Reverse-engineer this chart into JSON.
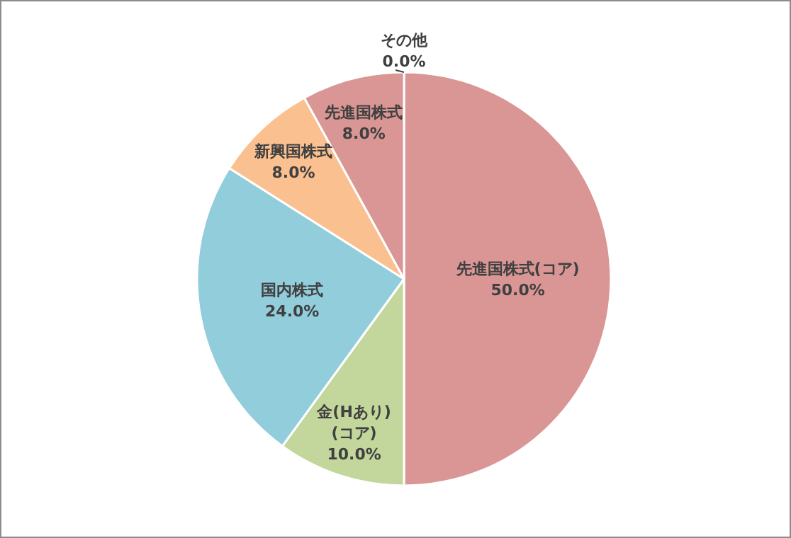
{
  "chart_data": {
    "type": "pie",
    "categories": [
      "先進国株式(コア)",
      "金(Hあり)(コア)",
      "国内株式",
      "新興国株式",
      "先進国株式",
      "その他"
    ],
    "values": [
      50,
      10,
      24,
      8,
      8,
      0
    ],
    "value_labels": [
      "50.0%",
      "10.0%",
      "24.0%",
      "8.0%",
      "8.0%",
      "0.0%"
    ],
    "colors": [
      "#d99694",
      "#c3d69b",
      "#92cddc",
      "#fac090",
      "#d99694",
      "#b3a2c7"
    ],
    "legend": false
  }
}
